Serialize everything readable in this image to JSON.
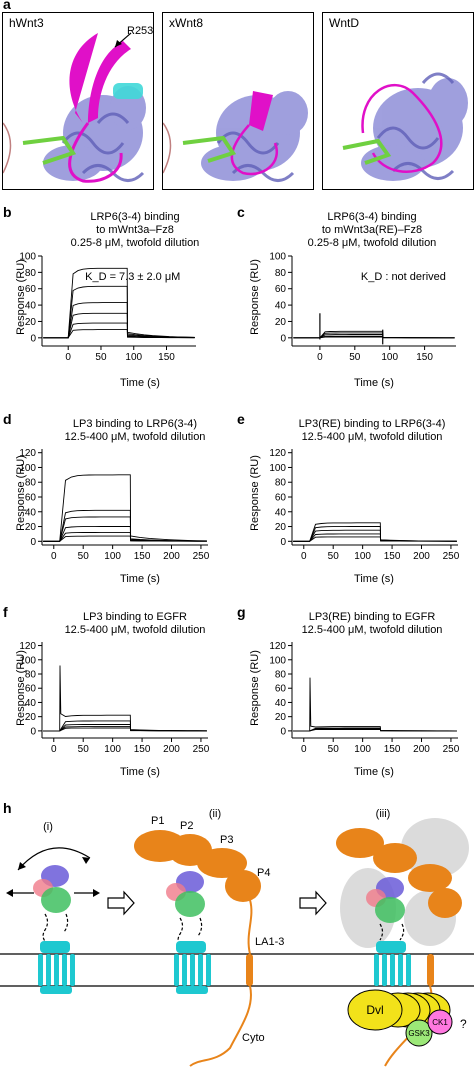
{
  "panel_a": {
    "label": "a",
    "structures": [
      {
        "name": "hWnt3",
        "annotation": "R253"
      },
      {
        "name": "xWnt8",
        "annotation": ""
      },
      {
        "name": "WntD",
        "annotation": ""
      }
    ],
    "colors": {
      "protein": "#8f8fd8",
      "loop": "#e010c8",
      "strand": "#6fd040",
      "helix_cyan": "#40d8d8"
    }
  },
  "panels": {
    "b": {
      "label": "b",
      "title_lines": [
        "LRP6(3-4) binding",
        "to mWnt3a–Fz8",
        "0.25-8 μM, twofold dilution"
      ],
      "annotation": "K_D = 7.3 ± 2.0 μM"
    },
    "c": {
      "label": "c",
      "title_lines": [
        "LRP6(3-4) binding",
        "to mWnt3a(RE)–Fz8",
        "0.25-8 μM, twofold dilution"
      ],
      "annotation": "K_D : not derived"
    },
    "d": {
      "label": "d",
      "title_lines": [
        "LP3 binding to LRP6(3-4)",
        "12.5-400 μM, twofold dilution"
      ],
      "annotation": ""
    },
    "e": {
      "label": "e",
      "title_lines": [
        "LP3(RE) binding to LRP6(3-4)",
        "12.5-400 μM, twofold dilution"
      ],
      "annotation": ""
    },
    "f": {
      "label": "f",
      "title_lines": [
        "LP3 binding to EGFR",
        "12.5-400 μM, twofold dilution"
      ],
      "annotation": ""
    },
    "g": {
      "label": "g",
      "title_lines": [
        "LP3(RE) binding to EGFR",
        "12.5-400 μM, twofold dilution"
      ],
      "annotation": ""
    }
  },
  "axes": {
    "ylabel": "Response (RU)",
    "xlabel": "Time (s)"
  },
  "chart_data": [
    {
      "type": "line",
      "panel": "b",
      "xlim": [
        -40,
        195
      ],
      "ylim": [
        -10,
        100
      ],
      "xticks": [
        0,
        50,
        100,
        150
      ],
      "yticks": [
        0,
        20,
        40,
        60,
        80,
        100
      ],
      "injection": [
        0,
        90
      ],
      "levels": [
        85,
        63,
        43,
        30,
        18,
        10
      ]
    },
    {
      "type": "line",
      "panel": "c",
      "xlim": [
        -40,
        195
      ],
      "ylim": [
        -10,
        100
      ],
      "xticks": [
        0,
        50,
        100,
        150
      ],
      "yticks": [
        0,
        20,
        40,
        60,
        80,
        100
      ],
      "injection": [
        0,
        90
      ],
      "levels": [
        8,
        6,
        4,
        2,
        1
      ]
    },
    {
      "type": "line",
      "panel": "d",
      "xlim": [
        -20,
        262
      ],
      "ylim": [
        -5,
        125
      ],
      "xticks": [
        0,
        50,
        100,
        150,
        200,
        250
      ],
      "yticks": [
        0,
        20,
        40,
        60,
        80,
        100,
        120
      ],
      "injection": [
        10,
        130
      ],
      "levels": [
        90,
        42,
        33,
        20,
        12,
        7
      ]
    },
    {
      "type": "line",
      "panel": "e",
      "xlim": [
        -20,
        262
      ],
      "ylim": [
        -5,
        125
      ],
      "xticks": [
        0,
        50,
        100,
        150,
        200,
        250
      ],
      "yticks": [
        0,
        20,
        40,
        60,
        80,
        100,
        120
      ],
      "injection": [
        10,
        130
      ],
      "levels": [
        25,
        20,
        15,
        10,
        6
      ]
    },
    {
      "type": "line",
      "panel": "f",
      "xlim": [
        -20,
        262
      ],
      "ylim": [
        -10,
        125
      ],
      "xticks": [
        0,
        50,
        100,
        150,
        200,
        250
      ],
      "yticks": [
        0,
        20,
        40,
        60,
        80,
        100,
        120
      ],
      "injection": [
        10,
        130
      ],
      "spike": 92,
      "levels": [
        22,
        14,
        9,
        6,
        4
      ]
    },
    {
      "type": "line",
      "panel": "g",
      "xlim": [
        -20,
        262
      ],
      "ylim": [
        -10,
        125
      ],
      "xticks": [
        0,
        50,
        100,
        150,
        200,
        250
      ],
      "yticks": [
        0,
        20,
        40,
        60,
        80,
        100,
        120
      ],
      "injection": [
        10,
        130
      ],
      "spike": 75,
      "levels": [
        6,
        4,
        3,
        2
      ]
    }
  ],
  "panel_h": {
    "label": "h",
    "steps": [
      "(i)",
      "(ii)",
      "(iii)"
    ],
    "domain_labels": [
      "P1",
      "P2",
      "P3",
      "P4",
      "LA1-3",
      "Cyto"
    ],
    "complex_labels": {
      "dvl": "Dvl",
      "ck1": "CK1",
      "gsk3": "GSK3",
      "unknown": "?"
    },
    "colors": {
      "lrp": "#e8841a",
      "fz": "#1ec8d0",
      "dvl": "#f2e21a",
      "ck1": "#ff78e0",
      "gsk3": "#9ce878",
      "wnt_green": "#40c060",
      "wnt_purple": "#6a5ad8",
      "wnt_pink": "#f07a8a"
    }
  }
}
